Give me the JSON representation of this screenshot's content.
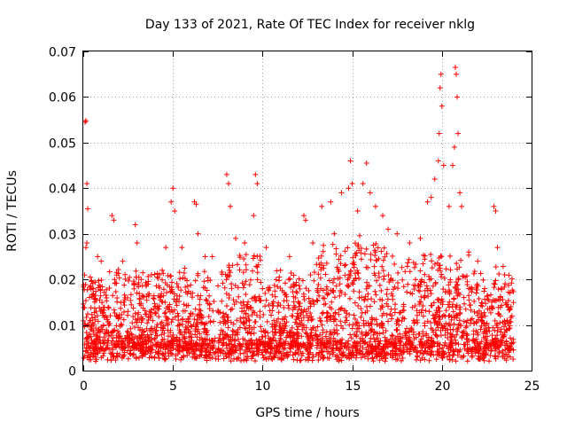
{
  "chart_data": {
    "type": "scatter",
    "title": "Day 133 of 2021, Rate Of TEC Index for receiver nklg",
    "xlabel": "GPS time / hours",
    "ylabel": "ROTI / TECUs",
    "xlim": [
      0,
      25
    ],
    "ylim": [
      0,
      0.07
    ],
    "xticks": [
      0,
      5,
      10,
      15,
      20,
      25
    ],
    "xtick_labels": [
      "0",
      "5",
      "10",
      "15",
      "20",
      "25"
    ],
    "yticks": [
      0,
      0.01,
      0.02,
      0.03,
      0.04,
      0.05,
      0.06,
      0.07
    ],
    "ytick_labels": [
      "0",
      "0.01",
      "0.02",
      "0.03",
      "0.04",
      "0.05",
      "0.06",
      "0.07"
    ],
    "grid": true,
    "marker": "+",
    "color": "#ff0000",
    "data_gap_hours": [
      7.4,
      7.5
    ],
    "series": [
      {
        "name": "ROTI",
        "points": [
          [
            0.1,
            0.0545
          ],
          [
            0.15,
            0.0548
          ],
          [
            0.2,
            0.041
          ],
          [
            0.25,
            0.0355
          ],
          [
            0.2,
            0.028
          ],
          [
            0.15,
            0.027
          ],
          [
            0.8,
            0.025
          ],
          [
            1.0,
            0.024
          ],
          [
            1.6,
            0.034
          ],
          [
            1.7,
            0.033
          ],
          [
            2.2,
            0.024
          ],
          [
            2.9,
            0.032
          ],
          [
            3.0,
            0.028
          ],
          [
            3.8,
            0.021
          ],
          [
            4.4,
            0.022
          ],
          [
            4.6,
            0.027
          ],
          [
            4.9,
            0.037
          ],
          [
            5.0,
            0.04
          ],
          [
            5.1,
            0.035
          ],
          [
            5.5,
            0.027
          ],
          [
            6.2,
            0.037
          ],
          [
            6.3,
            0.0365
          ],
          [
            6.4,
            0.03
          ],
          [
            6.8,
            0.025
          ],
          [
            7.2,
            0.025
          ],
          [
            8.0,
            0.043
          ],
          [
            8.1,
            0.041
          ],
          [
            8.2,
            0.036
          ],
          [
            8.5,
            0.029
          ],
          [
            9.0,
            0.028
          ],
          [
            9.5,
            0.034
          ],
          [
            9.6,
            0.043
          ],
          [
            9.7,
            0.041
          ],
          [
            10.2,
            0.027
          ],
          [
            11.0,
            0.022
          ],
          [
            11.5,
            0.025
          ],
          [
            12.3,
            0.034
          ],
          [
            12.4,
            0.033
          ],
          [
            12.8,
            0.028
          ],
          [
            13.3,
            0.036
          ],
          [
            13.8,
            0.037
          ],
          [
            14.0,
            0.03
          ],
          [
            14.4,
            0.039
          ],
          [
            14.8,
            0.04
          ],
          [
            14.9,
            0.046
          ],
          [
            15.0,
            0.041
          ],
          [
            15.3,
            0.035
          ],
          [
            15.6,
            0.041
          ],
          [
            15.8,
            0.0455
          ],
          [
            16.0,
            0.039
          ],
          [
            16.3,
            0.036
          ],
          [
            16.7,
            0.034
          ],
          [
            17.0,
            0.031
          ],
          [
            17.5,
            0.03
          ],
          [
            18.2,
            0.028
          ],
          [
            18.8,
            0.029
          ],
          [
            19.2,
            0.037
          ],
          [
            19.4,
            0.038
          ],
          [
            19.6,
            0.042
          ],
          [
            19.8,
            0.046
          ],
          [
            19.85,
            0.052
          ],
          [
            19.9,
            0.062
          ],
          [
            19.95,
            0.065
          ],
          [
            20.0,
            0.058
          ],
          [
            20.1,
            0.045
          ],
          [
            20.4,
            0.036
          ],
          [
            20.6,
            0.045
          ],
          [
            20.7,
            0.049
          ],
          [
            20.75,
            0.0665
          ],
          [
            20.8,
            0.065
          ],
          [
            20.85,
            0.06
          ],
          [
            20.9,
            0.052
          ],
          [
            21.0,
            0.039
          ],
          [
            21.1,
            0.036
          ],
          [
            21.5,
            0.026
          ],
          [
            22.0,
            0.024
          ],
          [
            22.9,
            0.036
          ],
          [
            23.0,
            0.035
          ],
          [
            23.1,
            0.027
          ],
          [
            23.5,
            0.021
          ],
          [
            23.8,
            0.017
          ]
        ]
      }
    ]
  }
}
